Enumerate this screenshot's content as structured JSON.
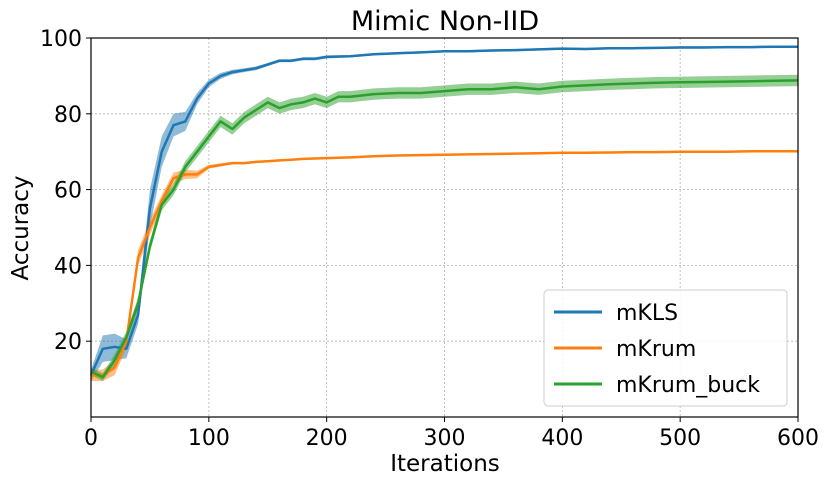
{
  "chart_data": {
    "type": "line",
    "title": "Mimic Non-IID",
    "xlabel": "Iterations",
    "ylabel": "Accuracy",
    "xlim": [
      0,
      600
    ],
    "ylim": [
      0,
      100
    ],
    "xticks": [
      0,
      100,
      200,
      300,
      400,
      500,
      600
    ],
    "yticks": [
      20,
      40,
      60,
      80,
      100
    ],
    "grid": true,
    "legend": "lower-right",
    "series": [
      {
        "name": "mKLS",
        "color": "#1f77b4",
        "x": [
          0,
          10,
          20,
          30,
          40,
          50,
          60,
          70,
          80,
          90,
          100,
          110,
          120,
          130,
          140,
          150,
          160,
          170,
          180,
          190,
          200,
          220,
          240,
          260,
          280,
          300,
          320,
          340,
          360,
          380,
          400,
          420,
          440,
          460,
          480,
          500,
          520,
          540,
          560,
          580,
          600
        ],
        "y": [
          11,
          18,
          18.5,
          18,
          27,
          55,
          70,
          77,
          78,
          84,
          88,
          90,
          91,
          91.5,
          92,
          93,
          94,
          94,
          94.5,
          94.5,
          95,
          95.2,
          95.7,
          96,
          96.2,
          96.5,
          96.5,
          96.7,
          96.8,
          97,
          97.2,
          97.1,
          97.3,
          97.3,
          97.4,
          97.5,
          97.5,
          97.6,
          97.6,
          97.7,
          97.7
        ],
        "band": [
          1.5,
          3.5,
          3.5,
          2.5,
          2.5,
          5,
          4,
          3,
          2.5,
          1.5,
          1,
          0.8,
          0.6,
          0.5,
          0.5,
          0.4,
          0.4,
          0.4,
          0.4,
          0.4,
          0.4,
          0.3,
          0.3,
          0.3,
          0.3,
          0.3,
          0.3,
          0.3,
          0.3,
          0.3,
          0.3,
          0.3,
          0.3,
          0.3,
          0.3,
          0.3,
          0.3,
          0.3,
          0.3,
          0.3,
          0.3
        ]
      },
      {
        "name": "mKrum",
        "color": "#ff7f0e",
        "x": [
          0,
          10,
          20,
          30,
          40,
          50,
          60,
          70,
          80,
          90,
          100,
          110,
          120,
          130,
          140,
          150,
          160,
          170,
          180,
          190,
          200,
          220,
          240,
          260,
          280,
          300,
          320,
          340,
          360,
          380,
          400,
          420,
          440,
          460,
          480,
          500,
          520,
          540,
          560,
          580,
          600
        ],
        "y": [
          11,
          11,
          13,
          20,
          42,
          50,
          57,
          63,
          64,
          64,
          66,
          66.5,
          67,
          67,
          67.3,
          67.5,
          67.7,
          67.9,
          68.1,
          68.2,
          68.3,
          68.5,
          68.8,
          69,
          69.1,
          69.2,
          69.3,
          69.4,
          69.5,
          69.6,
          69.7,
          69.7,
          69.8,
          69.9,
          69.9,
          70,
          70,
          70,
          70.1,
          70.1,
          70.1
        ],
        "band": [
          1.5,
          1.5,
          2,
          2,
          2,
          2,
          1.5,
          1.5,
          1.2,
          1,
          0.5,
          0.4,
          0.3,
          0.3,
          0.3,
          0.3,
          0.2,
          0.2,
          0.2,
          0.2,
          0.2,
          0.2,
          0.2,
          0.2,
          0.2,
          0.2,
          0.2,
          0.2,
          0.2,
          0.2,
          0.2,
          0.2,
          0.2,
          0.2,
          0.2,
          0.2,
          0.2,
          0.2,
          0.2,
          0.2,
          0.2
        ]
      },
      {
        "name": "mKrum_buck",
        "color": "#2ca02c",
        "x": [
          0,
          10,
          20,
          30,
          40,
          50,
          60,
          70,
          80,
          90,
          100,
          110,
          120,
          130,
          140,
          150,
          160,
          170,
          180,
          190,
          200,
          210,
          220,
          240,
          260,
          280,
          300,
          320,
          340,
          360,
          380,
          400,
          420,
          440,
          460,
          480,
          500,
          520,
          540,
          560,
          580,
          600
        ],
        "y": [
          12,
          10.5,
          15,
          21,
          30,
          45,
          56,
          60,
          66,
          70,
          74,
          78,
          76,
          79,
          81,
          83,
          81.5,
          82.5,
          83,
          84,
          83,
          84.5,
          84.5,
          85.2,
          85.5,
          85.5,
          86,
          86.5,
          86.5,
          87,
          86.5,
          87.2,
          87.5,
          87.8,
          88,
          88.2,
          88.3,
          88.4,
          88.5,
          88.6,
          88.7,
          88.8
        ],
        "band": [
          1,
          1,
          1.5,
          1.5,
          1.5,
          1.5,
          1.5,
          1.5,
          1.5,
          1.5,
          1.5,
          1.5,
          1.5,
          1.5,
          1.5,
          1.5,
          1.5,
          1.5,
          1.5,
          1.5,
          1.5,
          1.5,
          1.5,
          1.5,
          1.5,
          1.5,
          1.5,
          1.5,
          1.5,
          1.5,
          1.5,
          1.5,
          1.5,
          1.5,
          1.5,
          1.5,
          1.5,
          1.5,
          1.5,
          1.5,
          1.5,
          1.5
        ]
      }
    ]
  }
}
